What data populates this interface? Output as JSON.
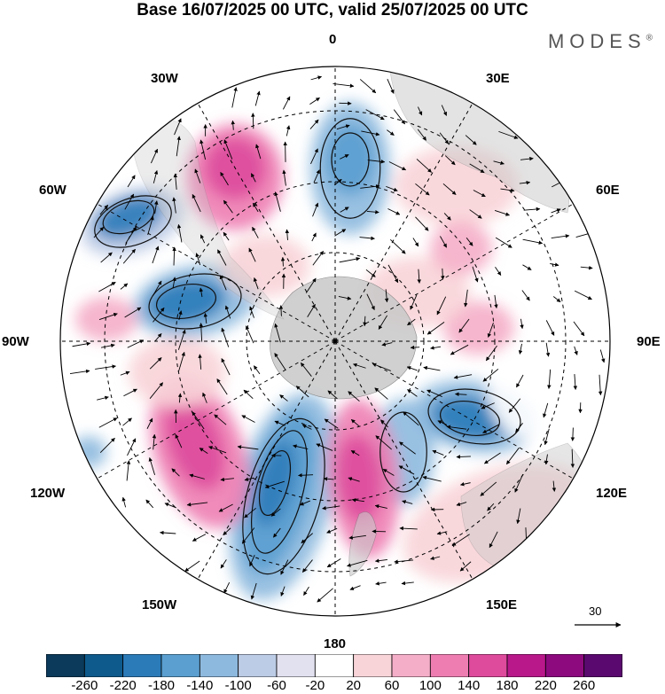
{
  "title": "Base 16/07/2025 00 UTC, valid 25/07/2025 00 UTC",
  "brand": "MODES",
  "brand_mark": "®",
  "longitude_labels": [
    "0",
    "30E",
    "60E",
    "90E",
    "120E",
    "150E",
    "180",
    "150W",
    "120W",
    "90W",
    "60W",
    "30W"
  ],
  "reference_vector": "30",
  "colorbar": {
    "ticks": [
      "-260",
      "-220",
      "-180",
      "-140",
      "-100",
      "-60",
      "-20",
      "20",
      "60",
      "100",
      "140",
      "180",
      "220",
      "260"
    ],
    "colors": [
      "#0b3a5a",
      "#0e5a8c",
      "#2b7bb9",
      "#5a9fd0",
      "#8db9de",
      "#bccbe6",
      "#e1e1f0",
      "#ffffff",
      "#f8d4d8",
      "#f5aec8",
      "#ee7eb2",
      "#de4a9c",
      "#b8188a",
      "#8c0a7e",
      "#5a0a6e"
    ]
  },
  "colors": {
    "land": "#c8c8c8",
    "grid": "#000000"
  }
}
